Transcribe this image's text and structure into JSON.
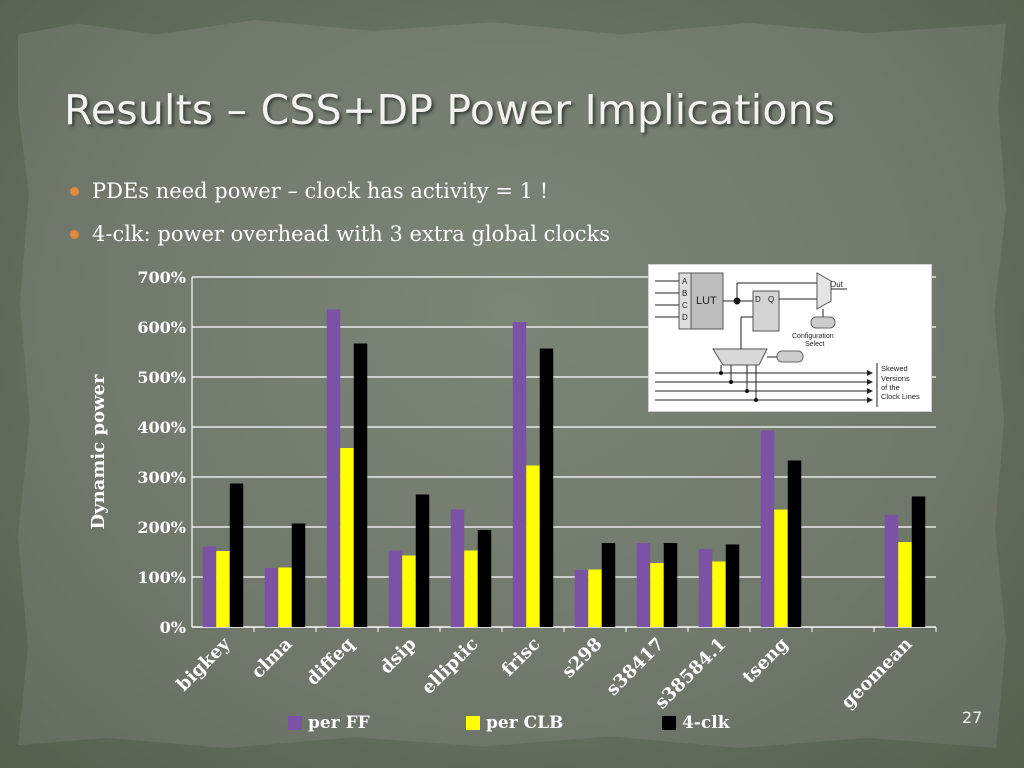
{
  "slide": {
    "title": "Results – CSS+DP Power Implications",
    "bullets": [
      "PDEs need power – clock has activity = 1 !",
      "4-clk: power overhead with 3 extra global clocks"
    ],
    "slide_number": "27"
  },
  "colors": {
    "per_ff": "#7b52a6",
    "per_clb": "#ffff00",
    "four_clk": "#000000",
    "bullet": "#e08a3a"
  },
  "inset": {
    "inputs": [
      "A",
      "B",
      "C",
      "D"
    ],
    "lut": "LUT",
    "ff_d": "D",
    "ff_q": "Q",
    "out": "Out",
    "config": [
      "Configuration",
      "Select"
    ],
    "skew": [
      "Skewed",
      "Versions",
      "of the",
      "Clock Lines"
    ]
  },
  "chart_data": {
    "type": "bar",
    "ylabel": "Dynamic power",
    "ylim": [
      0,
      700
    ],
    "yticks": [
      0,
      100,
      200,
      300,
      400,
      500,
      600,
      700
    ],
    "ytick_labels": [
      "0%",
      "100%",
      "200%",
      "300%",
      "400%",
      "500%",
      "600%",
      "700%"
    ],
    "grid": true,
    "legend_position": "bottom",
    "categories": [
      "bigkey",
      "clma",
      "diffeq",
      "dsip",
      "elliptic",
      "frisc",
      "s298",
      "s38417",
      "s38584.1",
      "tseng",
      "",
      "geomean"
    ],
    "series": [
      {
        "name": "per FF",
        "color": "#7b52a6",
        "values": [
          161,
          118,
          635,
          153,
          235,
          610,
          114,
          168,
          156,
          393,
          null,
          224
        ]
      },
      {
        "name": "per CLB",
        "color": "#ffff00",
        "values": [
          152,
          119,
          358,
          143,
          153,
          323,
          115,
          128,
          131,
          235,
          null,
          170
        ]
      },
      {
        "name": "4-clk",
        "color": "#000000",
        "values": [
          287,
          207,
          567,
          265,
          194,
          557,
          168,
          168,
          165,
          333,
          null,
          261
        ]
      }
    ]
  }
}
